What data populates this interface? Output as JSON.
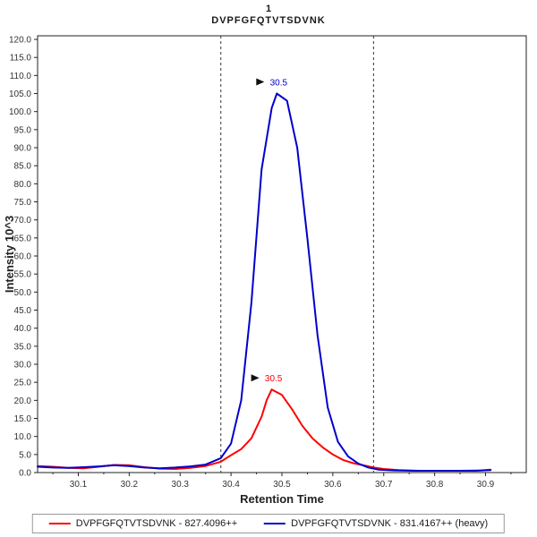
{
  "title": {
    "line1": "1",
    "line2": "DVPFGFQTVTSDVNK"
  },
  "axes": {
    "x_label": "Retention Time",
    "y_label": "Intensity 10^3"
  },
  "legend": {
    "items": [
      {
        "label": "DVPFGFQTVTSDVNK - 827.4096++",
        "color": "#ff0000"
      },
      {
        "label": "DVPFGFQTVTSDVNK - 831.4167++ (heavy)",
        "color": "#0000cc"
      }
    ]
  },
  "chart_data": {
    "type": "line",
    "title": "1 DVPFGFQTVTSDVNK",
    "xlabel": "Retention Time",
    "ylabel": "Intensity 10^3",
    "xlim": [
      30.02,
      30.98
    ],
    "ylim": [
      0,
      121
    ],
    "x_ticks": [
      30.1,
      30.2,
      30.3,
      30.4,
      30.5,
      30.6,
      30.7,
      30.8,
      30.9
    ],
    "y_ticks": [
      0,
      5,
      10,
      15,
      20,
      25,
      30,
      35,
      40,
      45,
      50,
      55,
      60,
      65,
      70,
      75,
      80,
      85,
      90,
      95,
      100,
      105,
      110,
      115,
      120
    ],
    "grid": false,
    "legend_position": "bottom",
    "boundaries": [
      30.38,
      30.68
    ],
    "series": [
      {
        "name": "DVPFGFQTVTSDVNK - 827.4096++",
        "color": "#ff0000",
        "peak": {
          "x": 30.48,
          "y": 23.0,
          "label": "30.5"
        },
        "points": [
          [
            30.02,
            1.8
          ],
          [
            30.05,
            1.6
          ],
          [
            30.08,
            1.3
          ],
          [
            30.11,
            1.2
          ],
          [
            30.14,
            1.6
          ],
          [
            30.17,
            2.1
          ],
          [
            30.2,
            2.0
          ],
          [
            30.23,
            1.5
          ],
          [
            30.26,
            1.1
          ],
          [
            30.29,
            1.0
          ],
          [
            30.32,
            1.3
          ],
          [
            30.35,
            1.8
          ],
          [
            30.38,
            3.0
          ],
          [
            30.4,
            4.8
          ],
          [
            30.42,
            6.5
          ],
          [
            30.44,
            9.5
          ],
          [
            30.46,
            15.5
          ],
          [
            30.47,
            20.0
          ],
          [
            30.48,
            23.0
          ],
          [
            30.5,
            21.5
          ],
          [
            30.52,
            17.5
          ],
          [
            30.54,
            13.0
          ],
          [
            30.56,
            9.5
          ],
          [
            30.58,
            7.0
          ],
          [
            30.6,
            5.0
          ],
          [
            30.62,
            3.5
          ],
          [
            30.64,
            2.6
          ],
          [
            30.66,
            2.0
          ],
          [
            30.68,
            1.4
          ],
          [
            30.7,
            1.0
          ],
          [
            30.73,
            0.7
          ],
          [
            30.77,
            0.5
          ],
          [
            30.81,
            0.5
          ],
          [
            30.85,
            0.5
          ],
          [
            30.89,
            0.6
          ],
          [
            30.91,
            0.8
          ]
        ]
      },
      {
        "name": "DVPFGFQTVTSDVNK - 831.4167++ (heavy)",
        "color": "#0000cc",
        "peak": {
          "x": 30.49,
          "y": 105.0,
          "label": "30.5"
        },
        "points": [
          [
            30.02,
            1.6
          ],
          [
            30.05,
            1.4
          ],
          [
            30.08,
            1.3
          ],
          [
            30.11,
            1.5
          ],
          [
            30.14,
            1.7
          ],
          [
            30.17,
            2.0
          ],
          [
            30.2,
            1.8
          ],
          [
            30.23,
            1.4
          ],
          [
            30.26,
            1.2
          ],
          [
            30.29,
            1.4
          ],
          [
            30.32,
            1.7
          ],
          [
            30.35,
            2.2
          ],
          [
            30.38,
            4.0
          ],
          [
            30.4,
            8.0
          ],
          [
            30.42,
            20.0
          ],
          [
            30.44,
            47.0
          ],
          [
            30.46,
            84.0
          ],
          [
            30.48,
            101.0
          ],
          [
            30.49,
            105.0
          ],
          [
            30.51,
            103.0
          ],
          [
            30.53,
            90.0
          ],
          [
            30.55,
            65.0
          ],
          [
            30.57,
            38.0
          ],
          [
            30.59,
            18.0
          ],
          [
            30.61,
            8.5
          ],
          [
            30.63,
            4.5
          ],
          [
            30.65,
            2.5
          ],
          [
            30.67,
            1.4
          ],
          [
            30.69,
            0.8
          ],
          [
            30.72,
            0.6
          ],
          [
            30.76,
            0.5
          ],
          [
            30.8,
            0.5
          ],
          [
            30.84,
            0.5
          ],
          [
            30.88,
            0.5
          ],
          [
            30.91,
            0.7
          ]
        ]
      }
    ]
  }
}
